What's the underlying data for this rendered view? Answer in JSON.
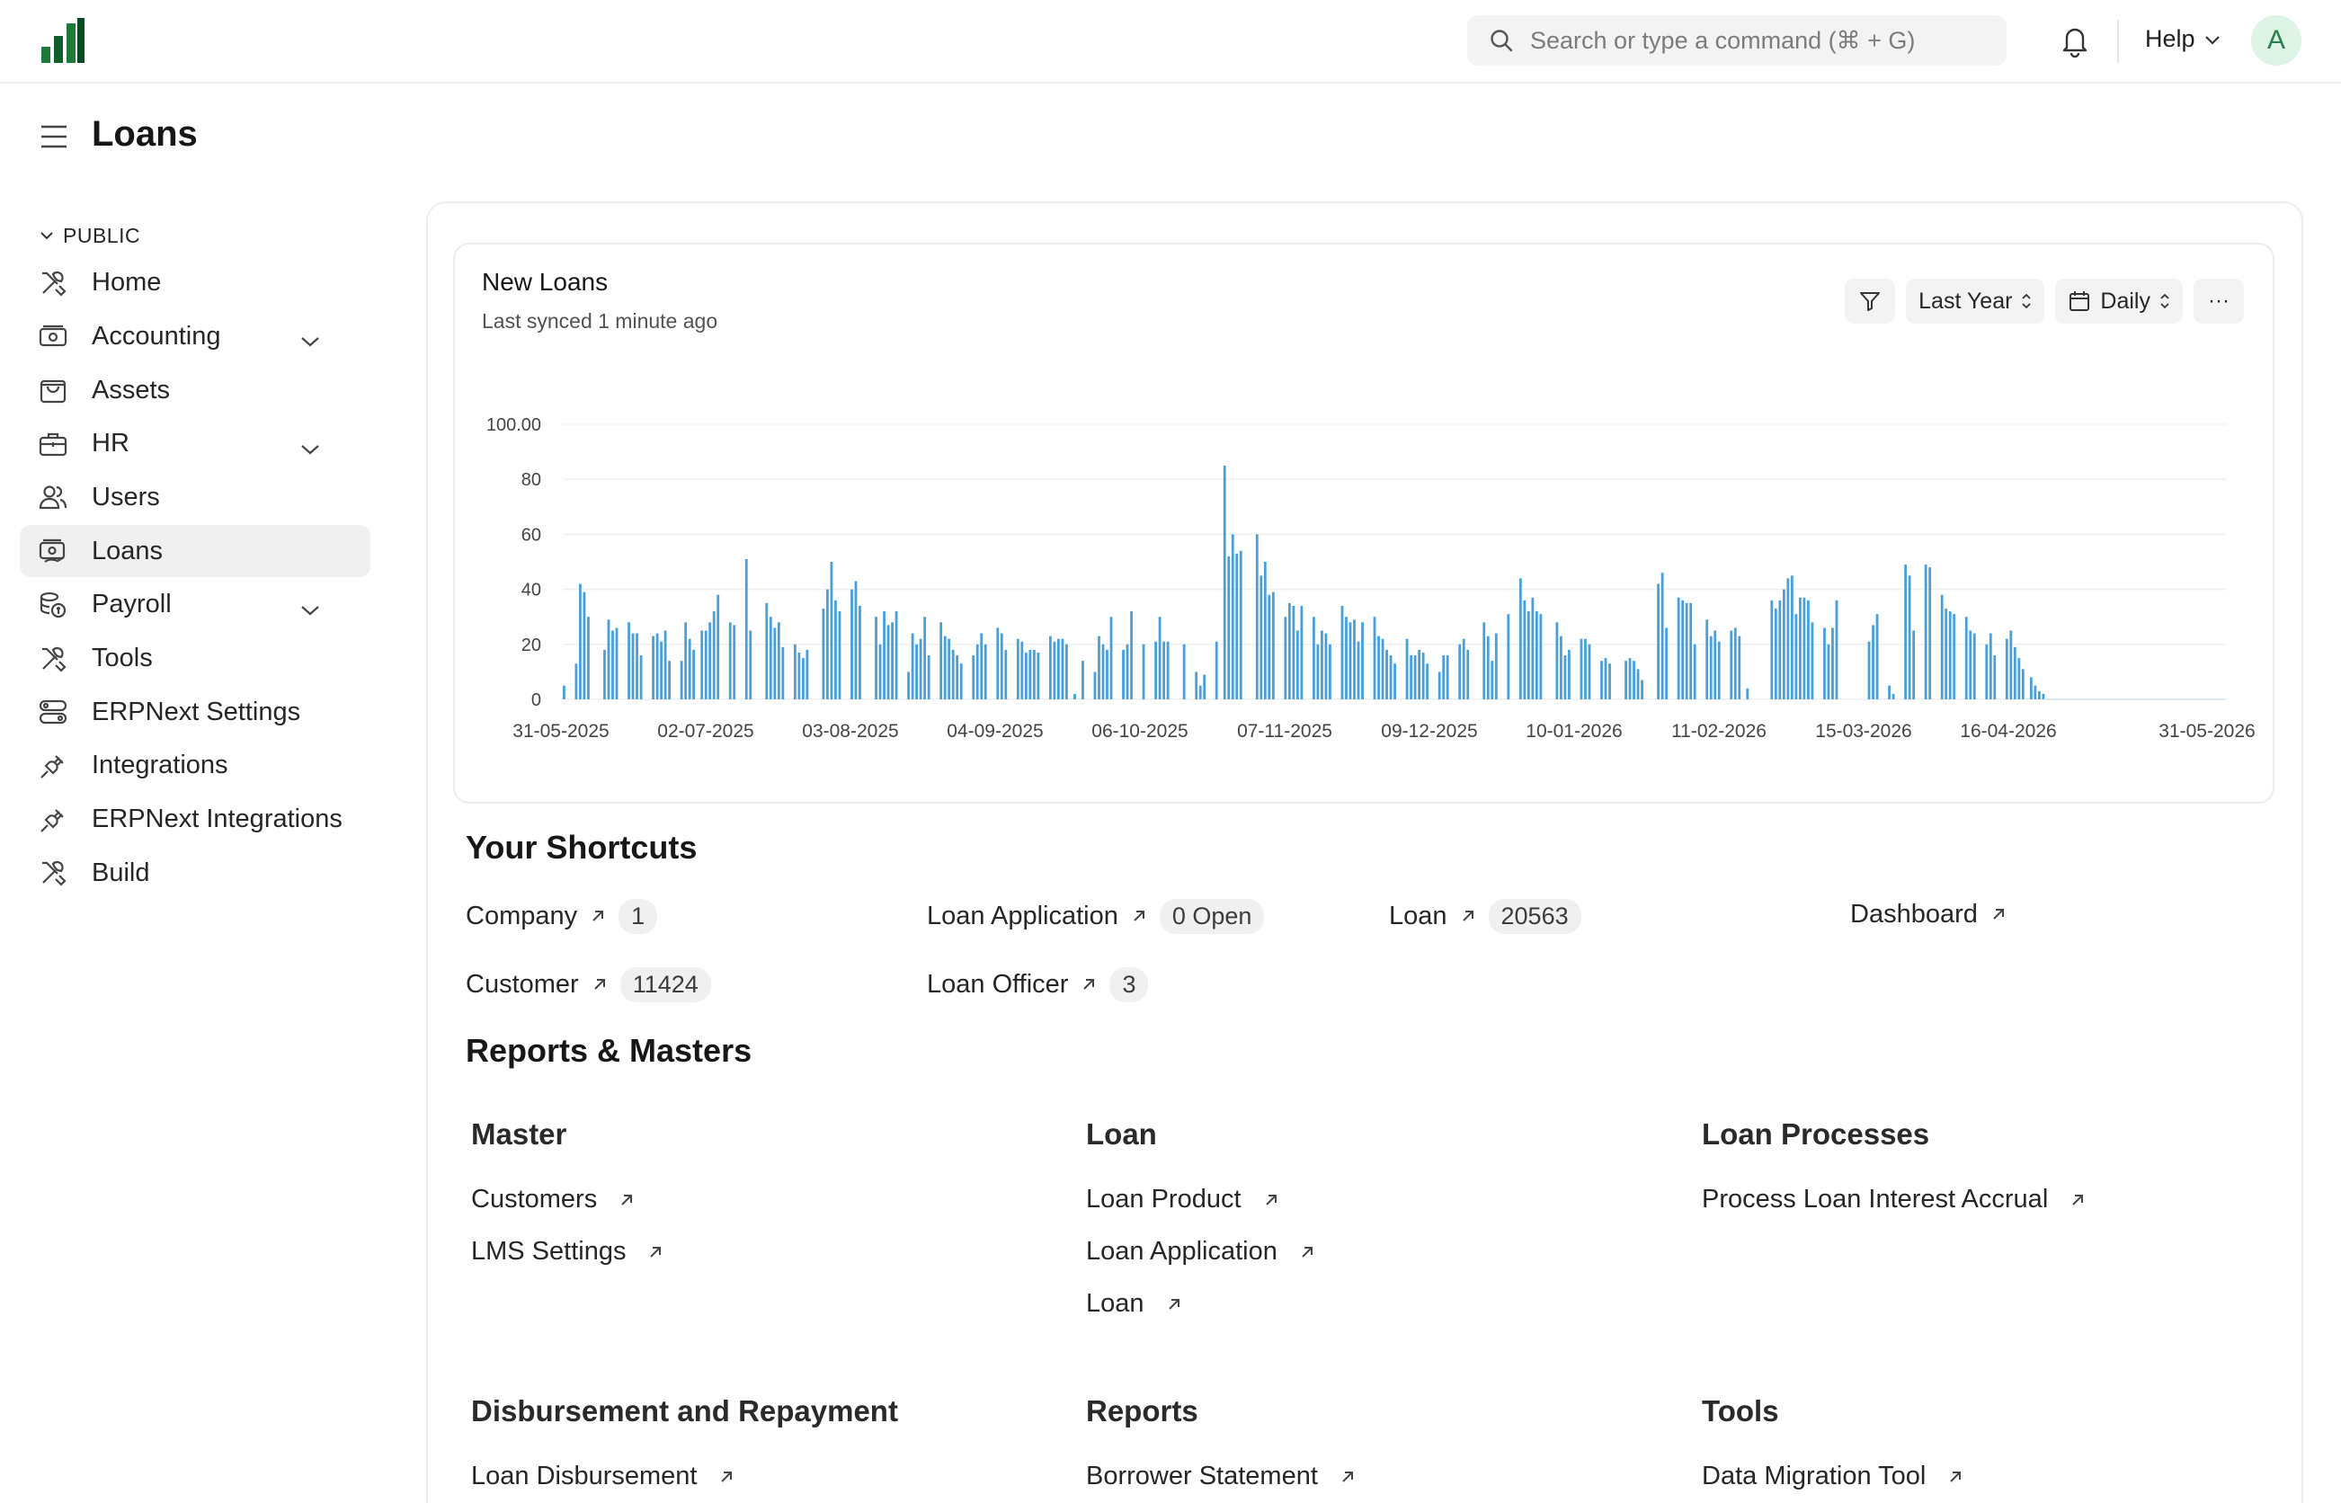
{
  "navbar": {
    "search_placeholder": "Search or type a command (⌘ + G)",
    "help_label": "Help",
    "avatar_initial": "A"
  },
  "page": {
    "title": "Loans"
  },
  "sidebar": {
    "section_label": "PUBLIC",
    "items": [
      {
        "label": "Home",
        "icon": "tools-icon",
        "expandable": false
      },
      {
        "label": "Accounting",
        "icon": "money-icon",
        "expandable": true
      },
      {
        "label": "Assets",
        "icon": "assets-icon",
        "expandable": false
      },
      {
        "label": "HR",
        "icon": "briefcase-icon",
        "expandable": true
      },
      {
        "label": "Users",
        "icon": "users-icon",
        "expandable": false
      },
      {
        "label": "Loans",
        "icon": "loan-icon",
        "expandable": false,
        "active": true
      },
      {
        "label": "Payroll",
        "icon": "payroll-icon",
        "expandable": true
      },
      {
        "label": "Tools",
        "icon": "tools-icon",
        "expandable": false
      },
      {
        "label": "ERPNext Settings",
        "icon": "settings-icon",
        "expandable": false
      },
      {
        "label": "Integrations",
        "icon": "plug-icon",
        "expandable": false
      },
      {
        "label": "ERPNext Integrations",
        "icon": "plug-icon",
        "expandable": false
      },
      {
        "label": "Build",
        "icon": "tools-icon",
        "expandable": false
      }
    ]
  },
  "chart": {
    "title": "New Loans",
    "subtitle": "Last synced 1 minute ago",
    "range_label": "Last Year",
    "interval_label": "Daily",
    "more_label": "···"
  },
  "chart_data": {
    "type": "bar",
    "title": "New Loans",
    "xlabel": "",
    "ylabel": "",
    "ylim": [
      0,
      100
    ],
    "yticks": [
      "0",
      "20",
      "40",
      "60",
      "80",
      "100.00"
    ],
    "xticks": [
      "31-05-2025",
      "02-07-2025",
      "03-08-2025",
      "04-09-2025",
      "06-10-2025",
      "07-11-2025",
      "09-12-2025",
      "10-01-2026",
      "11-02-2026",
      "15-03-2026",
      "16-04-2026",
      "31-05-2026"
    ],
    "x_start": "31-05-2025",
    "x_end": "31-05-2026",
    "color": "#4a9fd8",
    "grid": true,
    "values": [
      5,
      0,
      0,
      13,
      42,
      39,
      30,
      0,
      0,
      0,
      18,
      29,
      25,
      26,
      0,
      0,
      28,
      24,
      24,
      16,
      0,
      0,
      23,
      24,
      21,
      25,
      14,
      0,
      0,
      14,
      28,
      22,
      18,
      0,
      25,
      25,
      28,
      32,
      38,
      0,
      0,
      28,
      27,
      0,
      0,
      51,
      25,
      0,
      0,
      0,
      35,
      30,
      26,
      28,
      19,
      0,
      0,
      20,
      17,
      15,
      18,
      0,
      0,
      0,
      33,
      40,
      50,
      36,
      32,
      0,
      0,
      40,
      43,
      34,
      0,
      0,
      0,
      30,
      20,
      32,
      27,
      28,
      32,
      0,
      0,
      10,
      24,
      20,
      22,
      30,
      16,
      0,
      0,
      28,
      23,
      22,
      18,
      16,
      13,
      0,
      0,
      16,
      20,
      24,
      20,
      0,
      0,
      26,
      24,
      18,
      0,
      0,
      22,
      21,
      17,
      18,
      18,
      17,
      0,
      0,
      23,
      21,
      22,
      22,
      20,
      0,
      2,
      0,
      14,
      0,
      0,
      10,
      23,
      20,
      18,
      30,
      0,
      0,
      18,
      20,
      32,
      0,
      0,
      20,
      0,
      0,
      21,
      30,
      21,
      21,
      0,
      0,
      0,
      20,
      0,
      0,
      10,
      5,
      9,
      0,
      0,
      21,
      0,
      85,
      52,
      60,
      53,
      54,
      0,
      0,
      0,
      60,
      45,
      50,
      38,
      39,
      0,
      0,
      30,
      35,
      34,
      25,
      34,
      0,
      0,
      30,
      20,
      25,
      24,
      20,
      0,
      0,
      34,
      30,
      28,
      29,
      21,
      28,
      0,
      0,
      30,
      23,
      22,
      18,
      16,
      13,
      0,
      0,
      22,
      16,
      16,
      18,
      17,
      13,
      0,
      0,
      10,
      16,
      16,
      0,
      0,
      20,
      22,
      18,
      0,
      0,
      0,
      28,
      23,
      14,
      24,
      0,
      0,
      31,
      0,
      0,
      44,
      36,
      32,
      37,
      32,
      31,
      0,
      0,
      0,
      28,
      23,
      16,
      18,
      0,
      0,
      22,
      22,
      20,
      0,
      0,
      14,
      15,
      13,
      0,
      0,
      0,
      14,
      15,
      14,
      11,
      7,
      0,
      0,
      0,
      42,
      46,
      26,
      0,
      0,
      37,
      36,
      35,
      35,
      20,
      0,
      0,
      29,
      23,
      25,
      21,
      0,
      0,
      25,
      26,
      23,
      0,
      4,
      0,
      0,
      0,
      0,
      0,
      36,
      33,
      36,
      40,
      44,
      45,
      31,
      37,
      37,
      36,
      28,
      0,
      0,
      26,
      20,
      26,
      36,
      0,
      0,
      0,
      0,
      0,
      0,
      0,
      21,
      27,
      31,
      0,
      0,
      5,
      2,
      0,
      0,
      49,
      45,
      25,
      0,
      0,
      49,
      48,
      0,
      0,
      38,
      33,
      32,
      31,
      0,
      0,
      30,
      25,
      24,
      0,
      0,
      20,
      24,
      16,
      0,
      0,
      22,
      25,
      19,
      15,
      11,
      0,
      8,
      5,
      3,
      2
    ]
  },
  "shortcuts": {
    "title": "Your Shortcuts",
    "items": [
      {
        "label": "Company",
        "count": "1"
      },
      {
        "label": "Loan Application",
        "count": "0 Open"
      },
      {
        "label": "Loan",
        "count": "20563"
      },
      {
        "label": "Dashboard",
        "count": ""
      },
      {
        "label": "Customer",
        "count": "11424"
      },
      {
        "label": "Loan Officer",
        "count": "3"
      }
    ]
  },
  "reports": {
    "title": "Reports & Masters",
    "cards": [
      {
        "title": "Master",
        "links": [
          "Customers",
          "LMS Settings"
        ]
      },
      {
        "title": "Loan",
        "links": [
          "Loan Product",
          "Loan Application",
          "Loan"
        ]
      },
      {
        "title": "Loan Processes",
        "links": [
          "Process Loan Interest Accrual"
        ]
      },
      {
        "title": "Disbursement and Repayment",
        "links": [
          "Loan Disbursement"
        ]
      },
      {
        "title": "Reports",
        "links": [
          "Borrower Statement"
        ]
      },
      {
        "title": "Tools",
        "links": [
          "Data Migration Tool"
        ]
      }
    ]
  }
}
